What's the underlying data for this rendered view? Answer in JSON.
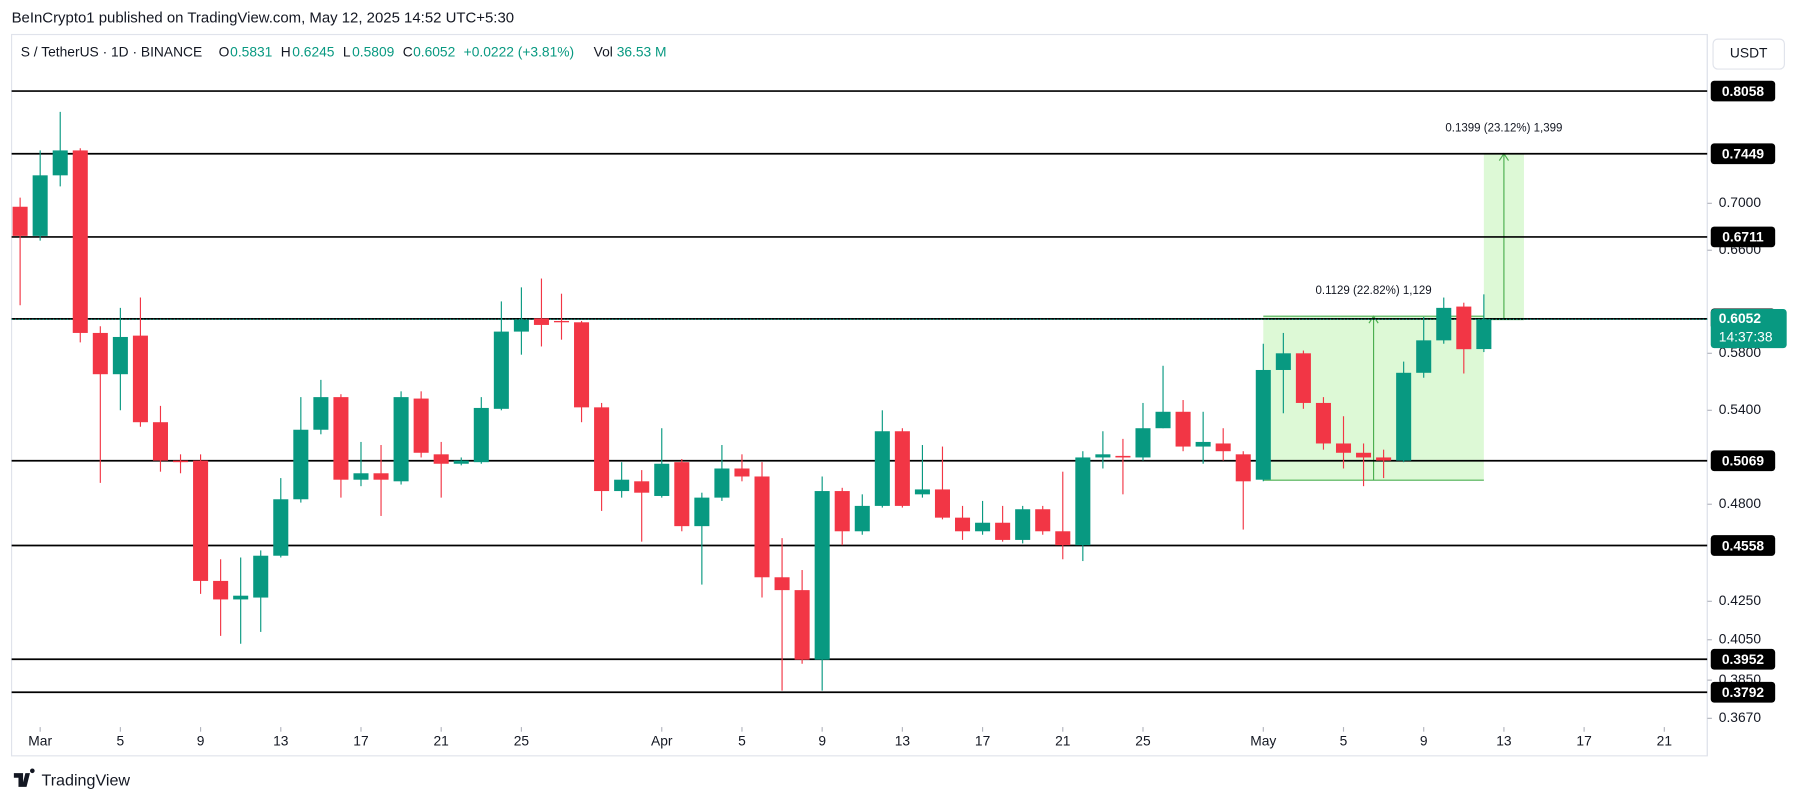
{
  "header": {
    "published": "BeInCrypto1 published on TradingView.com, May 12, 2025 14:52 UTC+5:30",
    "symbol": "S / TetherUS · 1D · BINANCE",
    "ohlc_labels": [
      "O",
      "H",
      "L",
      "C"
    ],
    "change": "+0.0222 (+3.81%)",
    "vol_label": "Vol",
    "volume": "36.53 M",
    "currency": "USDT",
    "brand": "TradingView"
  },
  "chart_data": {
    "type": "candlestick",
    "log_scale": true,
    "up_color": "#089981",
    "down_color": "#f23645",
    "x": [
      "2025-02-28",
      "2025-03-01",
      "2025-03-02",
      "2025-03-03",
      "2025-03-04",
      "2025-03-05",
      "2025-03-06",
      "2025-03-07",
      "2025-03-08",
      "2025-03-09",
      "2025-03-10",
      "2025-03-11",
      "2025-03-12",
      "2025-03-13",
      "2025-03-14",
      "2025-03-15",
      "2025-03-16",
      "2025-03-17",
      "2025-03-18",
      "2025-03-19",
      "2025-03-20",
      "2025-03-21",
      "2025-03-22",
      "2025-03-23",
      "2025-03-24",
      "2025-03-25",
      "2025-03-26",
      "2025-03-27",
      "2025-03-28",
      "2025-03-29",
      "2025-03-30",
      "2025-03-31",
      "2025-04-01",
      "2025-04-02",
      "2025-04-03",
      "2025-04-04",
      "2025-04-05",
      "2025-04-06",
      "2025-04-07",
      "2025-04-08",
      "2025-04-09",
      "2025-04-10",
      "2025-04-11",
      "2025-04-12",
      "2025-04-13",
      "2025-04-14",
      "2025-04-15",
      "2025-04-16",
      "2025-04-17",
      "2025-04-18",
      "2025-04-19",
      "2025-04-20",
      "2025-04-21",
      "2025-04-22",
      "2025-04-23",
      "2025-04-24",
      "2025-04-25",
      "2025-04-26",
      "2025-04-27",
      "2025-04-28",
      "2025-04-29",
      "2025-04-30",
      "2025-05-01",
      "2025-05-02",
      "2025-05-03",
      "2025-05-04",
      "2025-05-05",
      "2025-05-06",
      "2025-05-07",
      "2025-05-08",
      "2025-05-09",
      "2025-05-10",
      "2025-05-11",
      "2025-05-12"
    ],
    "open": [
      0.697,
      0.672,
      0.725,
      0.748,
      0.595,
      0.565,
      0.593,
      0.532,
      0.507,
      0.507,
      0.436,
      0.426,
      0.427,
      0.45,
      0.483,
      0.527,
      0.549,
      0.495,
      0.499,
      0.494,
      0.548,
      0.511,
      0.505,
      0.506,
      0.541,
      0.596,
      0.606,
      0.604,
      0.603,
      0.542,
      0.488,
      0.494,
      0.485,
      0.506,
      0.467,
      0.484,
      0.502,
      0.497,
      0.438,
      0.431,
      0.395,
      0.488,
      0.464,
      0.479,
      0.526,
      0.486,
      0.489,
      0.472,
      0.464,
      0.469,
      0.459,
      0.477,
      0.464,
      0.456,
      0.509,
      0.51,
      0.509,
      0.528,
      0.539,
      0.516,
      0.518,
      0.511,
      0.495,
      0.568,
      0.58,
      0.545,
      0.518,
      0.512,
      0.509,
      0.507,
      0.566,
      0.5895,
      0.615,
      0.5831
    ],
    "high": [
      0.705,
      0.748,
      0.785,
      0.75,
      0.6,
      0.614,
      0.622,
      0.543,
      0.511,
      0.511,
      0.448,
      0.449,
      0.453,
      0.496,
      0.549,
      0.561,
      0.551,
      0.519,
      0.517,
      0.553,
      0.553,
      0.519,
      0.509,
      0.549,
      0.619,
      0.63,
      0.637,
      0.625,
      0.604,
      0.545,
      0.506,
      0.501,
      0.528,
      0.508,
      0.487,
      0.517,
      0.511,
      0.506,
      0.46,
      0.442,
      0.497,
      0.49,
      0.486,
      0.54,
      0.528,
      0.517,
      0.516,
      0.479,
      0.482,
      0.479,
      0.479,
      0.479,
      0.5,
      0.513,
      0.526,
      0.521,
      0.545,
      0.571,
      0.547,
      0.539,
      0.528,
      0.513,
      0.587,
      0.595,
      0.582,
      0.549,
      0.536,
      0.518,
      0.514,
      0.574,
      0.607,
      0.622,
      0.618,
      0.6245
    ],
    "low": [
      0.616,
      0.668,
      0.715,
      0.588,
      0.493,
      0.54,
      0.529,
      0.5,
      0.499,
      0.429,
      0.407,
      0.403,
      0.409,
      0.449,
      0.481,
      0.524,
      0.484,
      0.491,
      0.473,
      0.492,
      0.509,
      0.484,
      0.504,
      0.505,
      0.54,
      0.579,
      0.585,
      0.59,
      0.532,
      0.476,
      0.484,
      0.458,
      0.484,
      0.464,
      0.434,
      0.482,
      0.494,
      0.427,
      0.38,
      0.393,
      0.38,
      0.456,
      0.462,
      0.478,
      0.478,
      0.484,
      0.471,
      0.459,
      0.462,
      0.458,
      0.457,
      0.462,
      0.448,
      0.447,
      0.502,
      0.486,
      0.507,
      0.528,
      0.513,
      0.505,
      0.507,
      0.465,
      0.494,
      0.538,
      0.541,
      0.514,
      0.502,
      0.491,
      0.496,
      0.506,
      0.5625,
      0.587,
      0.5655,
      0.5809
    ],
    "close": [
      0.672,
      0.725,
      0.748,
      0.595,
      0.565,
      0.592,
      0.532,
      0.507,
      0.506,
      0.436,
      0.426,
      0.428,
      0.45,
      0.483,
      0.527,
      0.549,
      0.495,
      0.499,
      0.495,
      0.549,
      0.512,
      0.505,
      0.507,
      0.5416,
      0.596,
      0.605,
      0.601,
      0.603,
      0.542,
      0.488,
      0.495,
      0.487,
      0.505,
      0.467,
      0.484,
      0.502,
      0.497,
      0.438,
      0.431,
      0.395,
      0.488,
      0.464,
      0.479,
      0.526,
      0.479,
      0.489,
      0.472,
      0.464,
      0.469,
      0.459,
      0.477,
      0.464,
      0.456,
      0.509,
      0.511,
      0.509,
      0.528,
      0.539,
      0.516,
      0.519,
      0.513,
      0.494,
      0.568,
      0.58,
      0.545,
      0.518,
      0.512,
      0.509,
      0.507,
      0.566,
      0.5895,
      0.614,
      0.583,
      0.6052
    ],
    "xlim": [
      "2025-02-27",
      "2025-05-23"
    ],
    "xticks": [
      {
        "value": "2025-03-01",
        "label": "Mar"
      },
      {
        "value": "2025-03-05",
        "label": "5"
      },
      {
        "value": "2025-03-09",
        "label": "9"
      },
      {
        "value": "2025-03-13",
        "label": "13"
      },
      {
        "value": "2025-03-17",
        "label": "17"
      },
      {
        "value": "2025-03-21",
        "label": "21"
      },
      {
        "value": "2025-03-25",
        "label": "25"
      },
      {
        "value": "2025-04-01",
        "label": "Apr"
      },
      {
        "value": "2025-04-05",
        "label": "5"
      },
      {
        "value": "2025-04-09",
        "label": "9"
      },
      {
        "value": "2025-04-13",
        "label": "13"
      },
      {
        "value": "2025-04-17",
        "label": "17"
      },
      {
        "value": "2025-04-21",
        "label": "21"
      },
      {
        "value": "2025-04-25",
        "label": "25"
      },
      {
        "value": "2025-05-01",
        "label": "May"
      },
      {
        "value": "2025-05-05",
        "label": "5"
      },
      {
        "value": "2025-05-09",
        "label": "9"
      },
      {
        "value": "2025-05-13",
        "label": "13"
      },
      {
        "value": "2025-05-17",
        "label": "17"
      },
      {
        "value": "2025-05-21",
        "label": "21"
      }
    ],
    "ylim": [
      0.363,
      0.865
    ],
    "yticks": [
      {
        "value": 0.367,
        "label": "0.3670"
      },
      {
        "value": 0.385,
        "label": "0.3850"
      },
      {
        "value": 0.405,
        "label": "0.4050"
      },
      {
        "value": 0.425,
        "label": "0.4250"
      },
      {
        "value": 0.48,
        "label": "0.4800"
      },
      {
        "value": 0.54,
        "label": "0.5400"
      },
      {
        "value": 0.58,
        "label": "0.5800"
      },
      {
        "value": 0.66,
        "label": "0.6600"
      },
      {
        "value": 0.7,
        "label": "0.7000"
      }
    ],
    "levels": [
      0.8058,
      0.7449,
      0.6711,
      0.6056,
      0.5069,
      0.4558,
      0.3952,
      0.3792
    ],
    "last_price": 0.6052,
    "countdown": "14:37:38",
    "measures": [
      {
        "label": "0.1129 (22.82%) 1,129",
        "from": 0.4947,
        "to": 0.6076,
        "start": "2025-05-01",
        "end": "2025-05-12"
      },
      {
        "label": "0.1399 (23.12%) 1,399",
        "from": 0.6051,
        "to": 0.745,
        "start": "2025-05-12",
        "end": "2025-05-14"
      }
    ]
  }
}
